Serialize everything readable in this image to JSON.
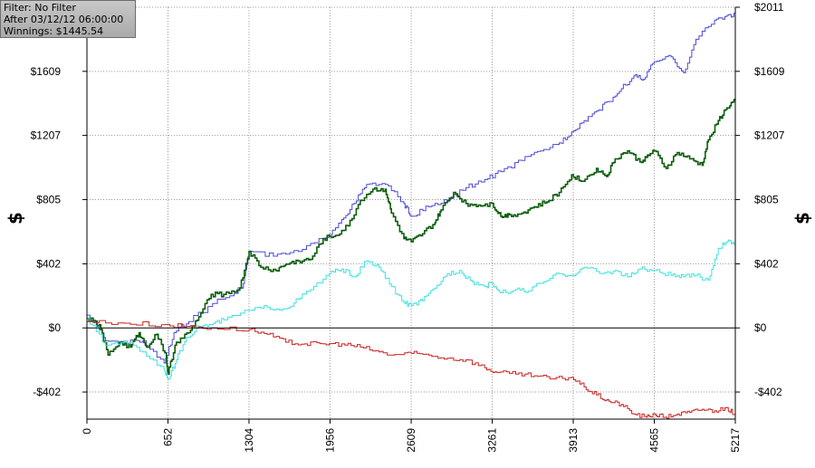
{
  "info": {
    "filter": "Filter: No Filter",
    "after": "After 03/12/12 06:00:00",
    "winnings": "Winnings: $1445.54"
  },
  "chart_data": {
    "type": "line",
    "ylabel": "$",
    "xlim": [
      0,
      5217
    ],
    "ylim": [
      -572,
      2011
    ],
    "y_ticks": [
      -402,
      0,
      402,
      805,
      1207,
      1609,
      2011
    ],
    "y_tick_labels": [
      "-$402",
      "$0",
      "$402",
      "$805",
      "$1207",
      "$1609",
      "$2011"
    ],
    "x_ticks": [
      0,
      652,
      1304,
      1956,
      2609,
      3261,
      3913,
      4565,
      5217
    ],
    "x_tick_labels": [
      "0",
      "652",
      "1304",
      "1956",
      "2609",
      "3261",
      "3913",
      "4565",
      "5217"
    ],
    "grid": true,
    "colors": {
      "blue": "#4a4ad6",
      "green": "#0b5d0b",
      "cyan": "#3fe0e0",
      "red": "#cc2222"
    },
    "series": [
      {
        "color": "blue",
        "step": true,
        "stroke": 1,
        "points": [
          [
            0,
            80
          ],
          [
            150,
            -80
          ],
          [
            300,
            -90
          ],
          [
            450,
            -80
          ],
          [
            620,
            -220
          ],
          [
            700,
            -30
          ],
          [
            820,
            40
          ],
          [
            1050,
            180
          ],
          [
            1250,
            250
          ],
          [
            1304,
            480
          ],
          [
            1500,
            450
          ],
          [
            1700,
            480
          ],
          [
            1900,
            560
          ],
          [
            2050,
            680
          ],
          [
            2150,
            780
          ],
          [
            2250,
            900
          ],
          [
            2400,
            900
          ],
          [
            2550,
            780
          ],
          [
            2609,
            700
          ],
          [
            2750,
            760
          ],
          [
            2900,
            800
          ],
          [
            3050,
            880
          ],
          [
            3200,
            930
          ],
          [
            3330,
            980
          ],
          [
            3500,
            1050
          ],
          [
            3650,
            1110
          ],
          [
            3800,
            1160
          ],
          [
            3900,
            1230
          ],
          [
            4000,
            1300
          ],
          [
            4100,
            1360
          ],
          [
            4200,
            1420
          ],
          [
            4300,
            1500
          ],
          [
            4400,
            1580
          ],
          [
            4480,
            1560
          ],
          [
            4565,
            1670
          ],
          [
            4700,
            1700
          ],
          [
            4800,
            1600
          ],
          [
            4900,
            1810
          ],
          [
            5050,
            1930
          ],
          [
            5150,
            1960
          ],
          [
            5217,
            1960
          ]
        ]
      },
      {
        "color": "green",
        "step": true,
        "stroke": 1.6,
        "points": [
          [
            0,
            60
          ],
          [
            100,
            20
          ],
          [
            170,
            -170
          ],
          [
            260,
            -90
          ],
          [
            350,
            -120
          ],
          [
            420,
            -30
          ],
          [
            480,
            -120
          ],
          [
            560,
            -40
          ],
          [
            640,
            -180
          ],
          [
            650,
            -290
          ],
          [
            720,
            -90
          ],
          [
            820,
            -30
          ],
          [
            900,
            70
          ],
          [
            1000,
            210
          ],
          [
            1100,
            210
          ],
          [
            1230,
            250
          ],
          [
            1304,
            480
          ],
          [
            1400,
            380
          ],
          [
            1520,
            360
          ],
          [
            1600,
            400
          ],
          [
            1700,
            420
          ],
          [
            1800,
            430
          ],
          [
            1900,
            560
          ],
          [
            2000,
            580
          ],
          [
            2100,
            640
          ],
          [
            2200,
            800
          ],
          [
            2300,
            870
          ],
          [
            2400,
            870
          ],
          [
            2450,
            720
          ],
          [
            2550,
            560
          ],
          [
            2609,
            540
          ],
          [
            2700,
            590
          ],
          [
            2800,
            660
          ],
          [
            2850,
            740
          ],
          [
            2950,
            850
          ],
          [
            3050,
            780
          ],
          [
            3150,
            770
          ],
          [
            3261,
            780
          ],
          [
            3330,
            700
          ],
          [
            3400,
            710
          ],
          [
            3500,
            720
          ],
          [
            3600,
            760
          ],
          [
            3700,
            790
          ],
          [
            3800,
            850
          ],
          [
            3900,
            960
          ],
          [
            3990,
            920
          ],
          [
            4100,
            1000
          ],
          [
            4180,
            950
          ],
          [
            4250,
            1060
          ],
          [
            4350,
            1110
          ],
          [
            4450,
            1040
          ],
          [
            4500,
            1070
          ],
          [
            4565,
            1110
          ],
          [
            4660,
            1000
          ],
          [
            4750,
            1100
          ],
          [
            4850,
            1060
          ],
          [
            4950,
            1020
          ],
          [
            5000,
            1180
          ],
          [
            5080,
            1300
          ],
          [
            5150,
            1380
          ],
          [
            5217,
            1430
          ]
        ]
      },
      {
        "color": "cyan",
        "step": true,
        "stroke": 1,
        "points": [
          [
            0,
            60
          ],
          [
            150,
            -110
          ],
          [
            300,
            -80
          ],
          [
            450,
            -150
          ],
          [
            620,
            -260
          ],
          [
            660,
            -320
          ],
          [
            720,
            -200
          ],
          [
            800,
            -60
          ],
          [
            900,
            10
          ],
          [
            1000,
            20
          ],
          [
            1100,
            50
          ],
          [
            1304,
            110
          ],
          [
            1450,
            130
          ],
          [
            1600,
            120
          ],
          [
            1700,
            180
          ],
          [
            1800,
            240
          ],
          [
            1950,
            340
          ],
          [
            2050,
            370
          ],
          [
            2150,
            320
          ],
          [
            2250,
            420
          ],
          [
            2350,
            380
          ],
          [
            2450,
            260
          ],
          [
            2550,
            160
          ],
          [
            2609,
            140
          ],
          [
            2700,
            170
          ],
          [
            2800,
            250
          ],
          [
            2900,
            340
          ],
          [
            3000,
            360
          ],
          [
            3100,
            290
          ],
          [
            3200,
            260
          ],
          [
            3261,
            280
          ],
          [
            3330,
            220
          ],
          [
            3450,
            240
          ],
          [
            3550,
            230
          ],
          [
            3650,
            280
          ],
          [
            3800,
            340
          ],
          [
            3900,
            330
          ],
          [
            4000,
            380
          ],
          [
            4150,
            340
          ],
          [
            4250,
            360
          ],
          [
            4350,
            320
          ],
          [
            4450,
            370
          ],
          [
            4565,
            360
          ],
          [
            4700,
            330
          ],
          [
            4800,
            320
          ],
          [
            4900,
            330
          ],
          [
            5000,
            300
          ],
          [
            5080,
            500
          ],
          [
            5150,
            540
          ],
          [
            5217,
            530
          ]
        ]
      },
      {
        "color": "red",
        "step": true,
        "stroke": 1,
        "points": [
          [
            0,
            40
          ],
          [
            300,
            30
          ],
          [
            600,
            20
          ],
          [
            800,
            10
          ],
          [
            1000,
            0
          ],
          [
            1304,
            -10
          ],
          [
            1450,
            -40
          ],
          [
            1600,
            -90
          ],
          [
            1750,
            -100
          ],
          [
            1900,
            -100
          ],
          [
            2050,
            -100
          ],
          [
            2200,
            -120
          ],
          [
            2350,
            -150
          ],
          [
            2450,
            -170
          ],
          [
            2609,
            -160
          ],
          [
            2750,
            -170
          ],
          [
            2900,
            -190
          ],
          [
            3050,
            -200
          ],
          [
            3200,
            -250
          ],
          [
            3300,
            -280
          ],
          [
            3450,
            -290
          ],
          [
            3600,
            -300
          ],
          [
            3750,
            -320
          ],
          [
            3900,
            -310
          ],
          [
            4000,
            -370
          ],
          [
            4100,
            -420
          ],
          [
            4200,
            -460
          ],
          [
            4300,
            -480
          ],
          [
            4400,
            -540
          ],
          [
            4500,
            -560
          ],
          [
            4565,
            -540
          ],
          [
            4650,
            -560
          ],
          [
            4750,
            -540
          ],
          [
            4850,
            -530
          ],
          [
            4950,
            -510
          ],
          [
            5050,
            -520
          ],
          [
            5150,
            -500
          ],
          [
            5217,
            -550
          ]
        ]
      }
    ]
  }
}
